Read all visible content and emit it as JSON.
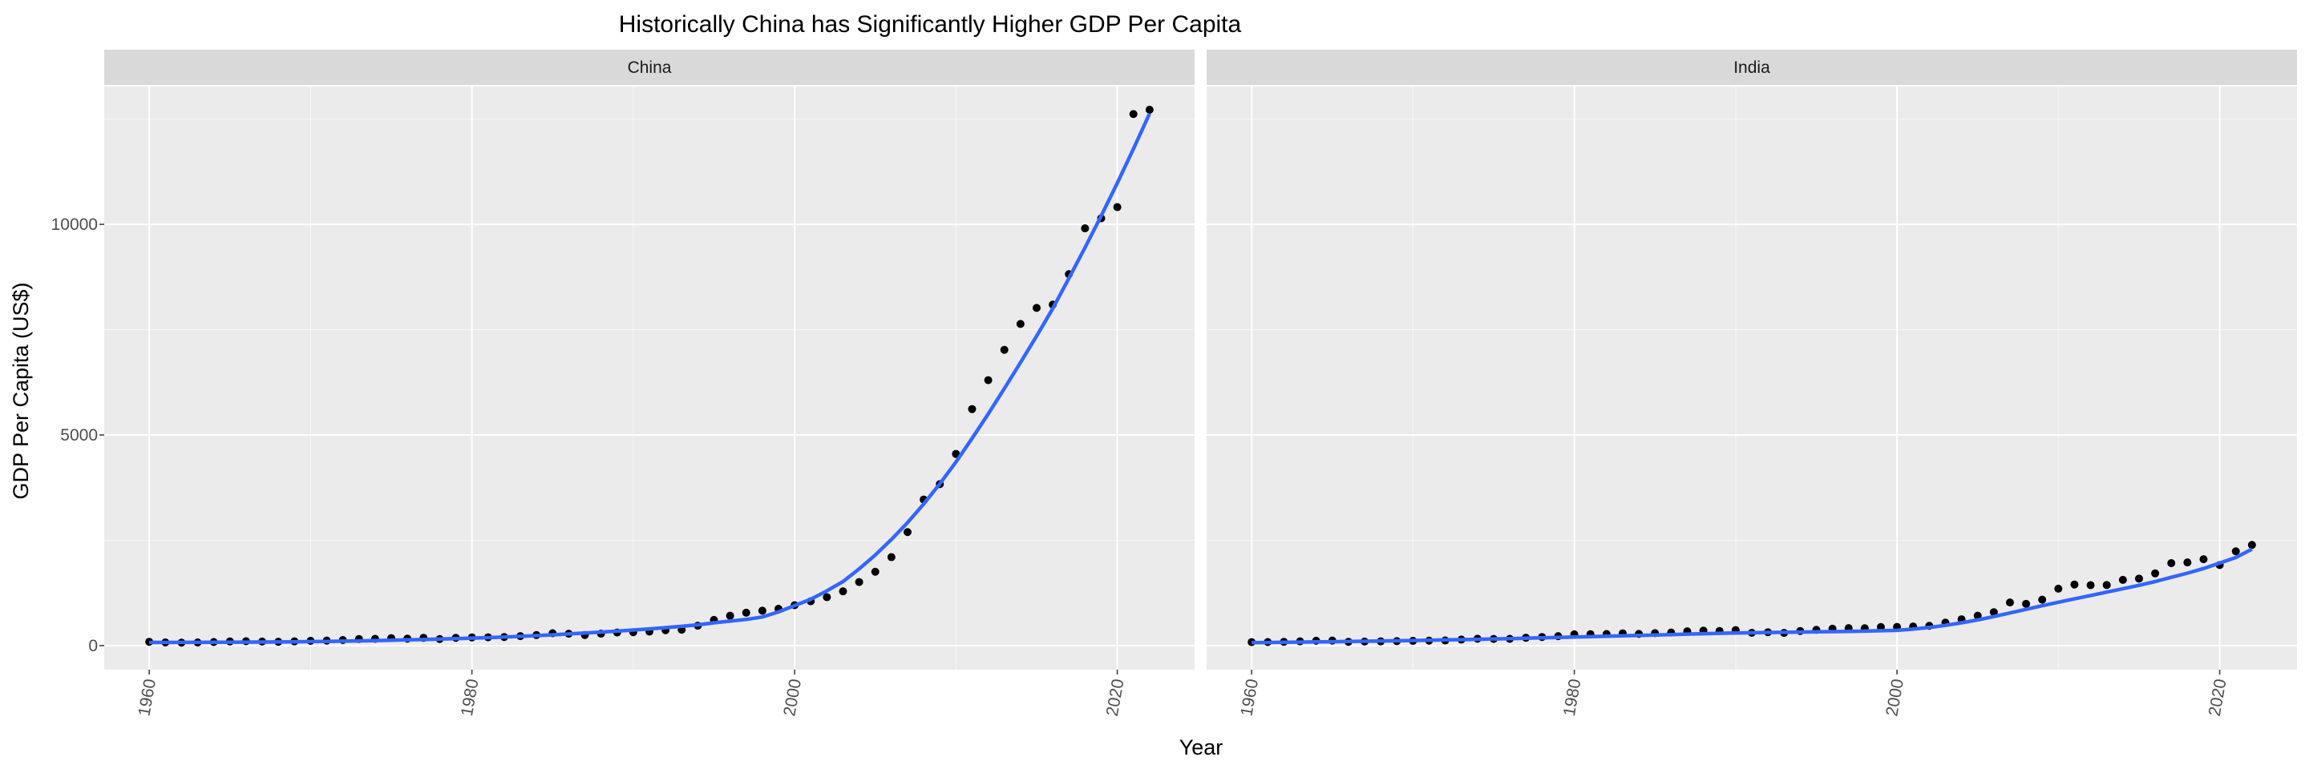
{
  "chart_data": {
    "type": "scatter",
    "title": "Historically China has Significantly Higher GDP Per Capita",
    "xlabel": "Year",
    "ylabel": "GDP Per Capita (US$)",
    "xlim": [
      1960,
      2022
    ],
    "ylim": [
      0,
      12700
    ],
    "x_ticks": [
      1960,
      1980,
      2000,
      2020
    ],
    "y_ticks": [
      0,
      5000,
      10000
    ],
    "grid": true,
    "facet_by": "country",
    "point_color": "#000000",
    "smooth_color": "#3366FF",
    "panel_background": "#EBEBEB",
    "strip_background": "#D9D9D9",
    "grid_color": "#FFFFFF",
    "panels": [
      {
        "label": "China",
        "x": [
          1960,
          1961,
          1962,
          1963,
          1964,
          1965,
          1966,
          1967,
          1968,
          1969,
          1970,
          1971,
          1972,
          1973,
          1974,
          1975,
          1976,
          1977,
          1978,
          1979,
          1980,
          1981,
          1982,
          1983,
          1984,
          1985,
          1986,
          1987,
          1988,
          1989,
          1990,
          1991,
          1992,
          1993,
          1994,
          1995,
          1996,
          1997,
          1998,
          1999,
          2000,
          2001,
          2002,
          2003,
          2004,
          2005,
          2006,
          2007,
          2008,
          2009,
          2010,
          2011,
          2012,
          2013,
          2014,
          2015,
          2016,
          2017,
          2018,
          2019,
          2020,
          2021,
          2022
        ],
        "points": [
          90,
          76,
          70,
          74,
          85,
          98,
          104,
          96,
          91,
          100,
          113,
          119,
          132,
          157,
          160,
          178,
          165,
          185,
          156,
          184,
          195,
          197,
          203,
          225,
          250,
          294,
          282,
          252,
          283,
          311,
          318,
          333,
          366,
          377,
          473,
          610,
          709,
          781,
          828,
          873,
          959,
          1053,
          1149,
          1289,
          1509,
          1753,
          2099,
          2694,
          3468,
          3832,
          4550,
          5614,
          6301,
          7020,
          7636,
          8016,
          8094,
          8817,
          9905,
          10144,
          10409,
          12618,
          12720
        ],
        "smooth": [
          75,
          75,
          76,
          77,
          78,
          80,
          82,
          84,
          87,
          91,
          95,
          100,
          106,
          112,
          119,
          127,
          135,
          144,
          154,
          165,
          177,
          190,
          204,
          220,
          237,
          256,
          276,
          297,
          320,
          344,
          370,
          397,
          426,
          458,
          494,
          540,
          580,
          620,
          680,
          800,
          950,
          1100,
          1300,
          1520,
          1820,
          2150,
          2520,
          2920,
          3360,
          3840,
          4360,
          4920,
          5500,
          6100,
          6720,
          7350,
          8000,
          8720,
          9450,
          10200,
          10980,
          11790,
          12630
        ]
      },
      {
        "label": "India",
        "x": [
          1960,
          1961,
          1962,
          1963,
          1964,
          1965,
          1966,
          1967,
          1968,
          1969,
          1970,
          1971,
          1972,
          1973,
          1974,
          1975,
          1976,
          1977,
          1978,
          1979,
          1980,
          1981,
          1982,
          1983,
          1984,
          1985,
          1986,
          1987,
          1988,
          1989,
          1990,
          1991,
          1992,
          1993,
          1994,
          1995,
          1996,
          1997,
          1998,
          1999,
          2000,
          2001,
          2002,
          2003,
          2004,
          2005,
          2006,
          2007,
          2008,
          2009,
          2010,
          2011,
          2012,
          2013,
          2014,
          2015,
          2016,
          2017,
          2018,
          2019,
          2020,
          2021,
          2022
        ],
        "points": [
          82,
          85,
          89,
          101,
          115,
          119,
          90,
          96,
          100,
          107,
          112,
          118,
          122,
          143,
          163,
          158,
          161,
          186,
          204,
          224,
          267,
          271,
          274,
          292,
          277,
          296,
          310,
          340,
          355,
          347,
          368,
          303,
          317,
          301,
          346,
          374,
          400,
          415,
          413,
          441,
          443,
          452,
          470,
          546,
          624,
          710,
          792,
          1023,
          991,
          1090,
          1351,
          1450,
          1435,
          1438,
          1560,
          1590,
          1714,
          1958,
          1974,
          2050,
          1913,
          2238,
          2389
        ],
        "smooth": [
          70,
          74,
          78,
          83,
          88,
          93,
          98,
          103,
          109,
          115,
          121,
          128,
          135,
          142,
          150,
          158,
          166,
          175,
          184,
          193,
          202,
          212,
          222,
          232,
          242,
          252,
          262,
          272,
          282,
          292,
          300,
          306,
          311,
          315,
          320,
          326,
          332,
          338,
          344,
          352,
          362,
          390,
          430,
          480,
          540,
          610,
          690,
          775,
          860,
          945,
          1030,
          1110,
          1190,
          1270,
          1350,
          1430,
          1520,
          1620,
          1720,
          1830,
          1960,
          2090,
          2290
        ]
      }
    ]
  }
}
